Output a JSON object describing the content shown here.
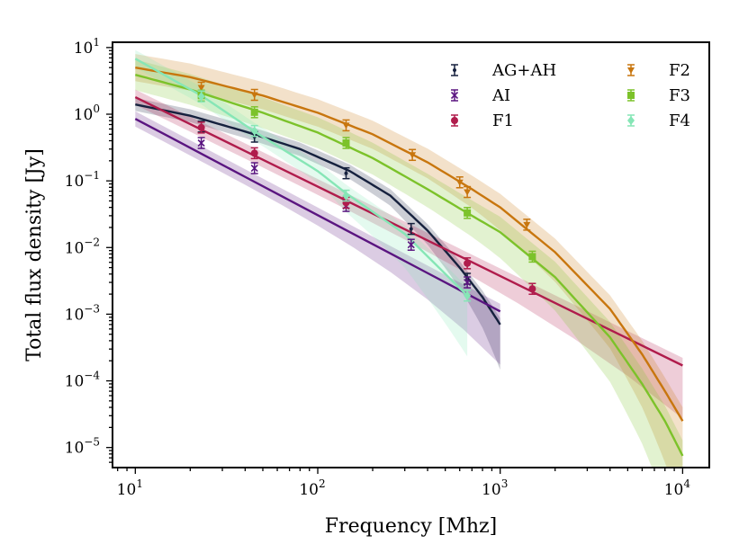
{
  "chart_data": {
    "type": "line",
    "xlabel": "Frequency [Mhz]",
    "ylabel": "Total flux density [Jy]",
    "xscale": "log",
    "yscale": "log",
    "xlim": [
      7.5,
      14000
    ],
    "ylim": [
      5e-06,
      12
    ],
    "grid": false,
    "legend_position": "top-right",
    "x_ticks": [
      {
        "value": 10,
        "base": "10",
        "exp": "1"
      },
      {
        "value": 100,
        "base": "10",
        "exp": "2"
      },
      {
        "value": 1000,
        "base": "10",
        "exp": "3"
      },
      {
        "value": 10000,
        "base": "10",
        "exp": "4"
      }
    ],
    "y_ticks": [
      {
        "value": 10,
        "base": "10",
        "exp": "1"
      },
      {
        "value": 1,
        "base": "10",
        "exp": "0"
      },
      {
        "value": 0.1,
        "base": "10",
        "exp": "−1"
      },
      {
        "value": 0.01,
        "base": "10",
        "exp": "−2"
      },
      {
        "value": 0.001,
        "base": "10",
        "exp": "−3"
      },
      {
        "value": 0.0001,
        "base": "10",
        "exp": "−4"
      },
      {
        "value": 1e-05,
        "base": "10",
        "exp": "−5"
      }
    ],
    "series": [
      {
        "name": "AG+AH",
        "color": "#16213e",
        "marker": "dot",
        "points": [
          [
            23,
            0.65
          ],
          [
            45,
            0.46
          ],
          [
            143,
            0.13
          ],
          [
            325,
            0.019
          ],
          [
            660,
            0.0034
          ]
        ],
        "fit": [
          [
            10,
            1.4
          ],
          [
            20,
            0.95
          ],
          [
            40,
            0.55
          ],
          [
            80,
            0.3
          ],
          [
            150,
            0.14
          ],
          [
            250,
            0.06
          ],
          [
            400,
            0.018
          ],
          [
            600,
            0.005
          ],
          [
            800,
            0.0018
          ],
          [
            1000,
            0.0007
          ]
        ],
        "band_factor": 1.25
      },
      {
        "name": "AI",
        "color": "#5a1580",
        "marker": "x",
        "points": [
          [
            23,
            0.37
          ],
          [
            45,
            0.155
          ],
          [
            143,
            0.042
          ],
          [
            325,
            0.011
          ],
          [
            660,
            0.003
          ]
        ],
        "fit": [
          [
            10,
            0.85
          ],
          [
            1000,
            0.0011
          ]
        ],
        "band_factor": 1.3
      },
      {
        "name": "F1",
        "color": "#b01c4c",
        "marker": "circle",
        "points": [
          [
            23,
            0.63
          ],
          [
            45,
            0.26
          ],
          [
            143,
            0.047
          ],
          [
            660,
            0.0058
          ],
          [
            1500,
            0.0024
          ]
        ],
        "fit": [
          [
            10,
            1.8
          ],
          [
            10000,
            0.00017
          ]
        ],
        "band_factor": 1.3
      },
      {
        "name": "F2",
        "color": "#c8760e",
        "marker": "triangle",
        "points": [
          [
            23,
            2.5
          ],
          [
            45,
            1.95
          ],
          [
            143,
            0.68
          ],
          [
            330,
            0.245
          ],
          [
            600,
            0.095
          ],
          [
            660,
            0.068
          ],
          [
            1400,
            0.022
          ]
        ],
        "fit": [
          [
            10,
            5.0
          ],
          [
            20,
            3.6
          ],
          [
            50,
            1.9
          ],
          [
            100,
            1.05
          ],
          [
            200,
            0.5
          ],
          [
            400,
            0.19
          ],
          [
            700,
            0.075
          ],
          [
            1000,
            0.04
          ],
          [
            2000,
            0.0085
          ],
          [
            4000,
            0.0012
          ],
          [
            6000,
            0.00025
          ],
          [
            8000,
            7e-05
          ],
          [
            10000,
            2.5e-05
          ]
        ],
        "band_factor": 1.6
      },
      {
        "name": "F3",
        "color": "#7cc22a",
        "marker": "square",
        "points": [
          [
            23,
            1.9
          ],
          [
            45,
            1.07
          ],
          [
            143,
            0.37
          ],
          [
            660,
            0.033
          ],
          [
            1500,
            0.0073
          ]
        ],
        "fit": [
          [
            10,
            3.9
          ],
          [
            20,
            2.35
          ],
          [
            50,
            1.05
          ],
          [
            100,
            0.53
          ],
          [
            200,
            0.22
          ],
          [
            400,
            0.075
          ],
          [
            700,
            0.03
          ],
          [
            1000,
            0.017
          ],
          [
            2000,
            0.0036
          ],
          [
            4000,
            0.00045
          ],
          [
            6000,
            9e-05
          ],
          [
            8000,
            2.5e-05
          ],
          [
            10000,
            7.5e-06
          ]
        ],
        "band_factor": 1.7
      },
      {
        "name": "F4",
        "color": "#86e6b6",
        "marker": "diamond",
        "points": [
          [
            23,
            1.85
          ],
          [
            45,
            0.56
          ],
          [
            143,
            0.06
          ],
          [
            660,
            0.0019
          ]
        ],
        "fit": [
          [
            10,
            6.8
          ],
          [
            23,
            1.9
          ],
          [
            45,
            0.55
          ],
          [
            100,
            0.14
          ],
          [
            143,
            0.065
          ],
          [
            300,
            0.016
          ],
          [
            660,
            0.0019
          ]
        ],
        "band_factor": 1.35
      }
    ]
  }
}
